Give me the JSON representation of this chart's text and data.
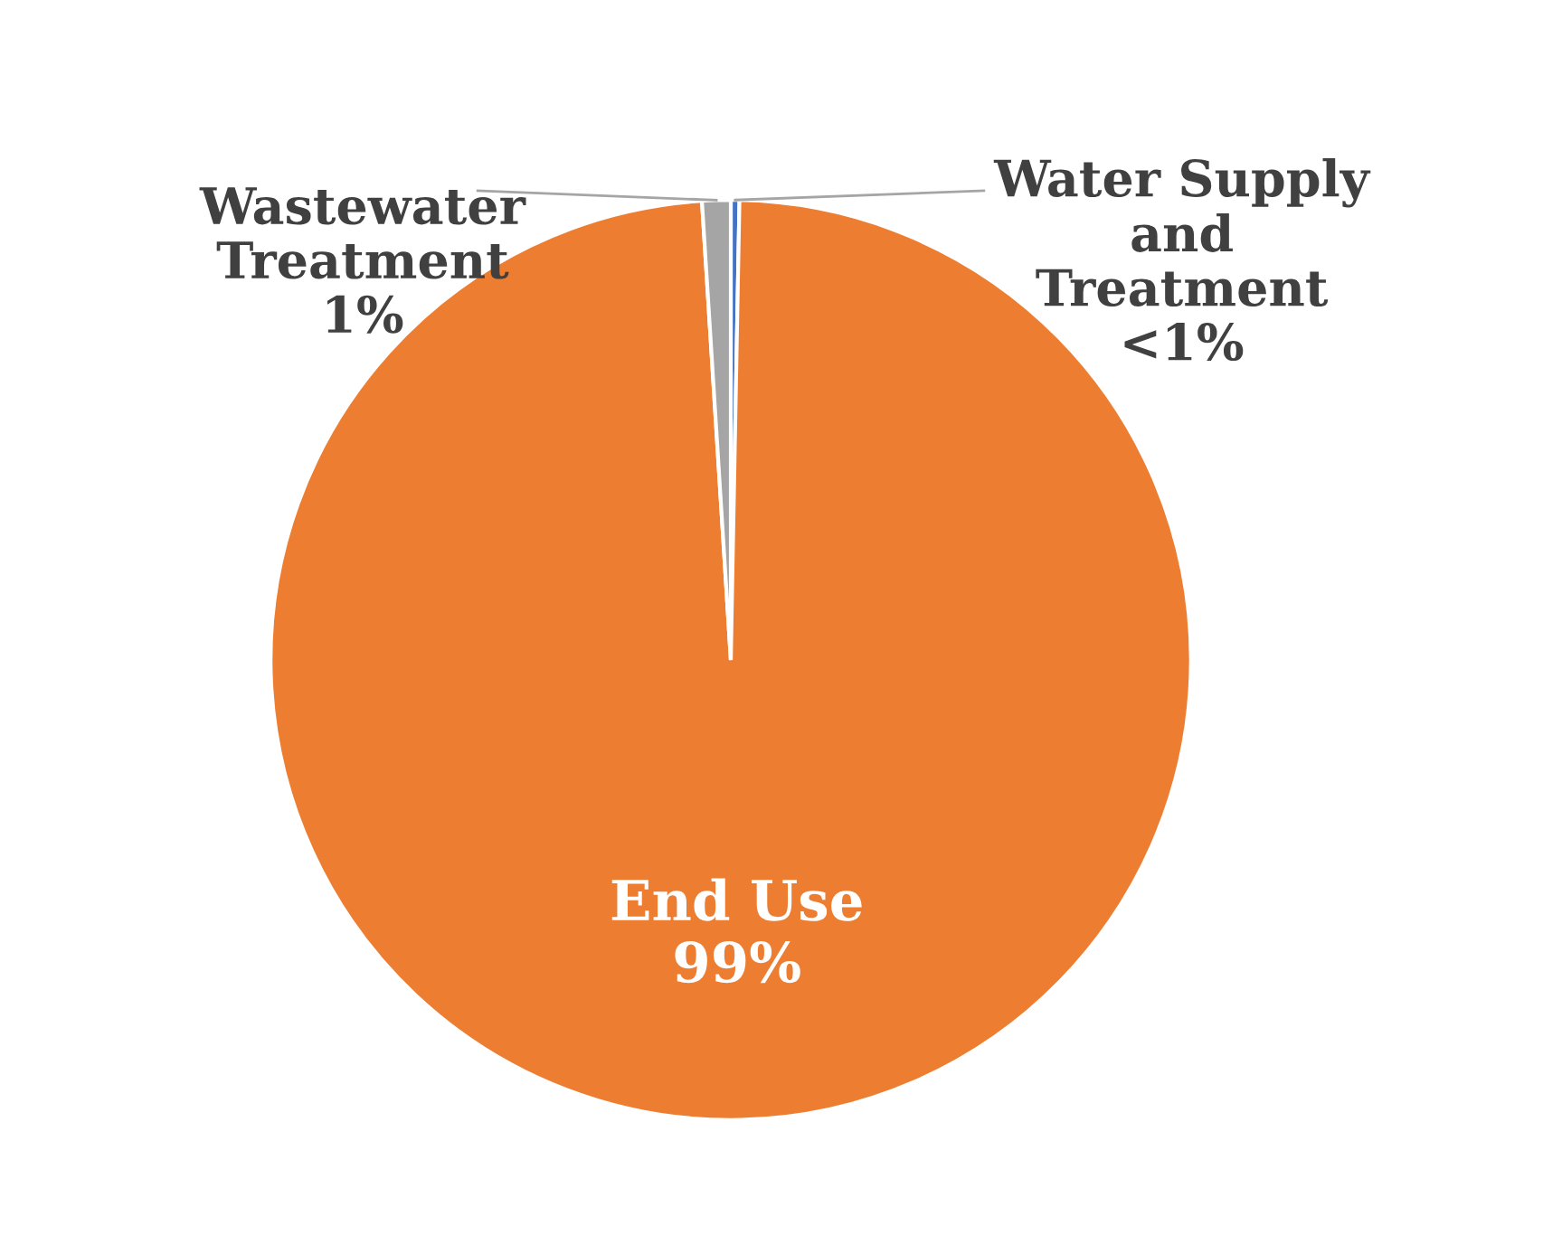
{
  "chart_data": {
    "type": "pie",
    "categories": [
      "Water Supply\nand\nTreatment",
      "End Use",
      "Wastewater\nTreatment"
    ],
    "values": [
      0.3,
      98.7,
      1.0
    ],
    "colors": [
      "#4472c4",
      "#ed7d31",
      "#a5a5a5"
    ],
    "value_labels": [
      "<1%",
      "99%",
      "1%"
    ]
  }
}
